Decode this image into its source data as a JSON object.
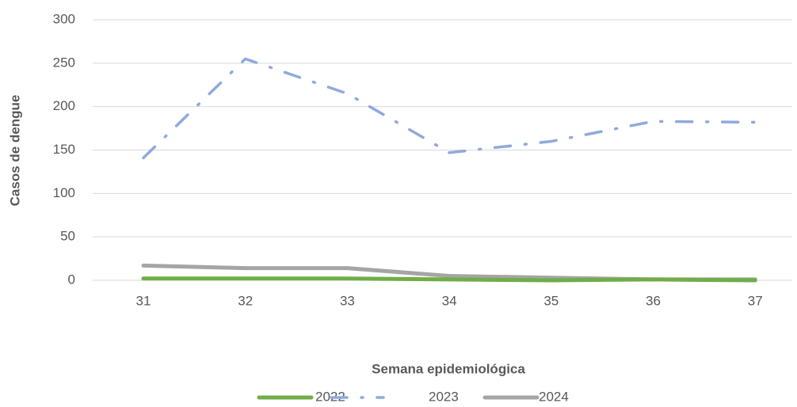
{
  "chart_data": {
    "type": "line",
    "y_label": "Casos de dengue",
    "x_label": "Semana epidemiológica",
    "categories": [
      "31",
      "32",
      "33",
      "34",
      "35",
      "36",
      "37"
    ],
    "series": [
      {
        "name": "2022",
        "color": "#70ad47",
        "values": [
          2,
          2,
          2,
          1,
          0,
          1,
          0
        ]
      },
      {
        "name": "2023",
        "color": "#8faadc",
        "values": [
          141,
          255,
          215,
          147,
          160,
          183,
          182
        ]
      },
      {
        "name": "2024",
        "color": "#a5a5a5",
        "values": [
          17,
          14,
          14,
          5,
          3,
          1,
          1
        ]
      }
    ],
    "ylim": [
      0,
      300
    ],
    "yticks": [
      0,
      50,
      100,
      150,
      200,
      250,
      300
    ],
    "grid": true,
    "legend": "bottom"
  }
}
